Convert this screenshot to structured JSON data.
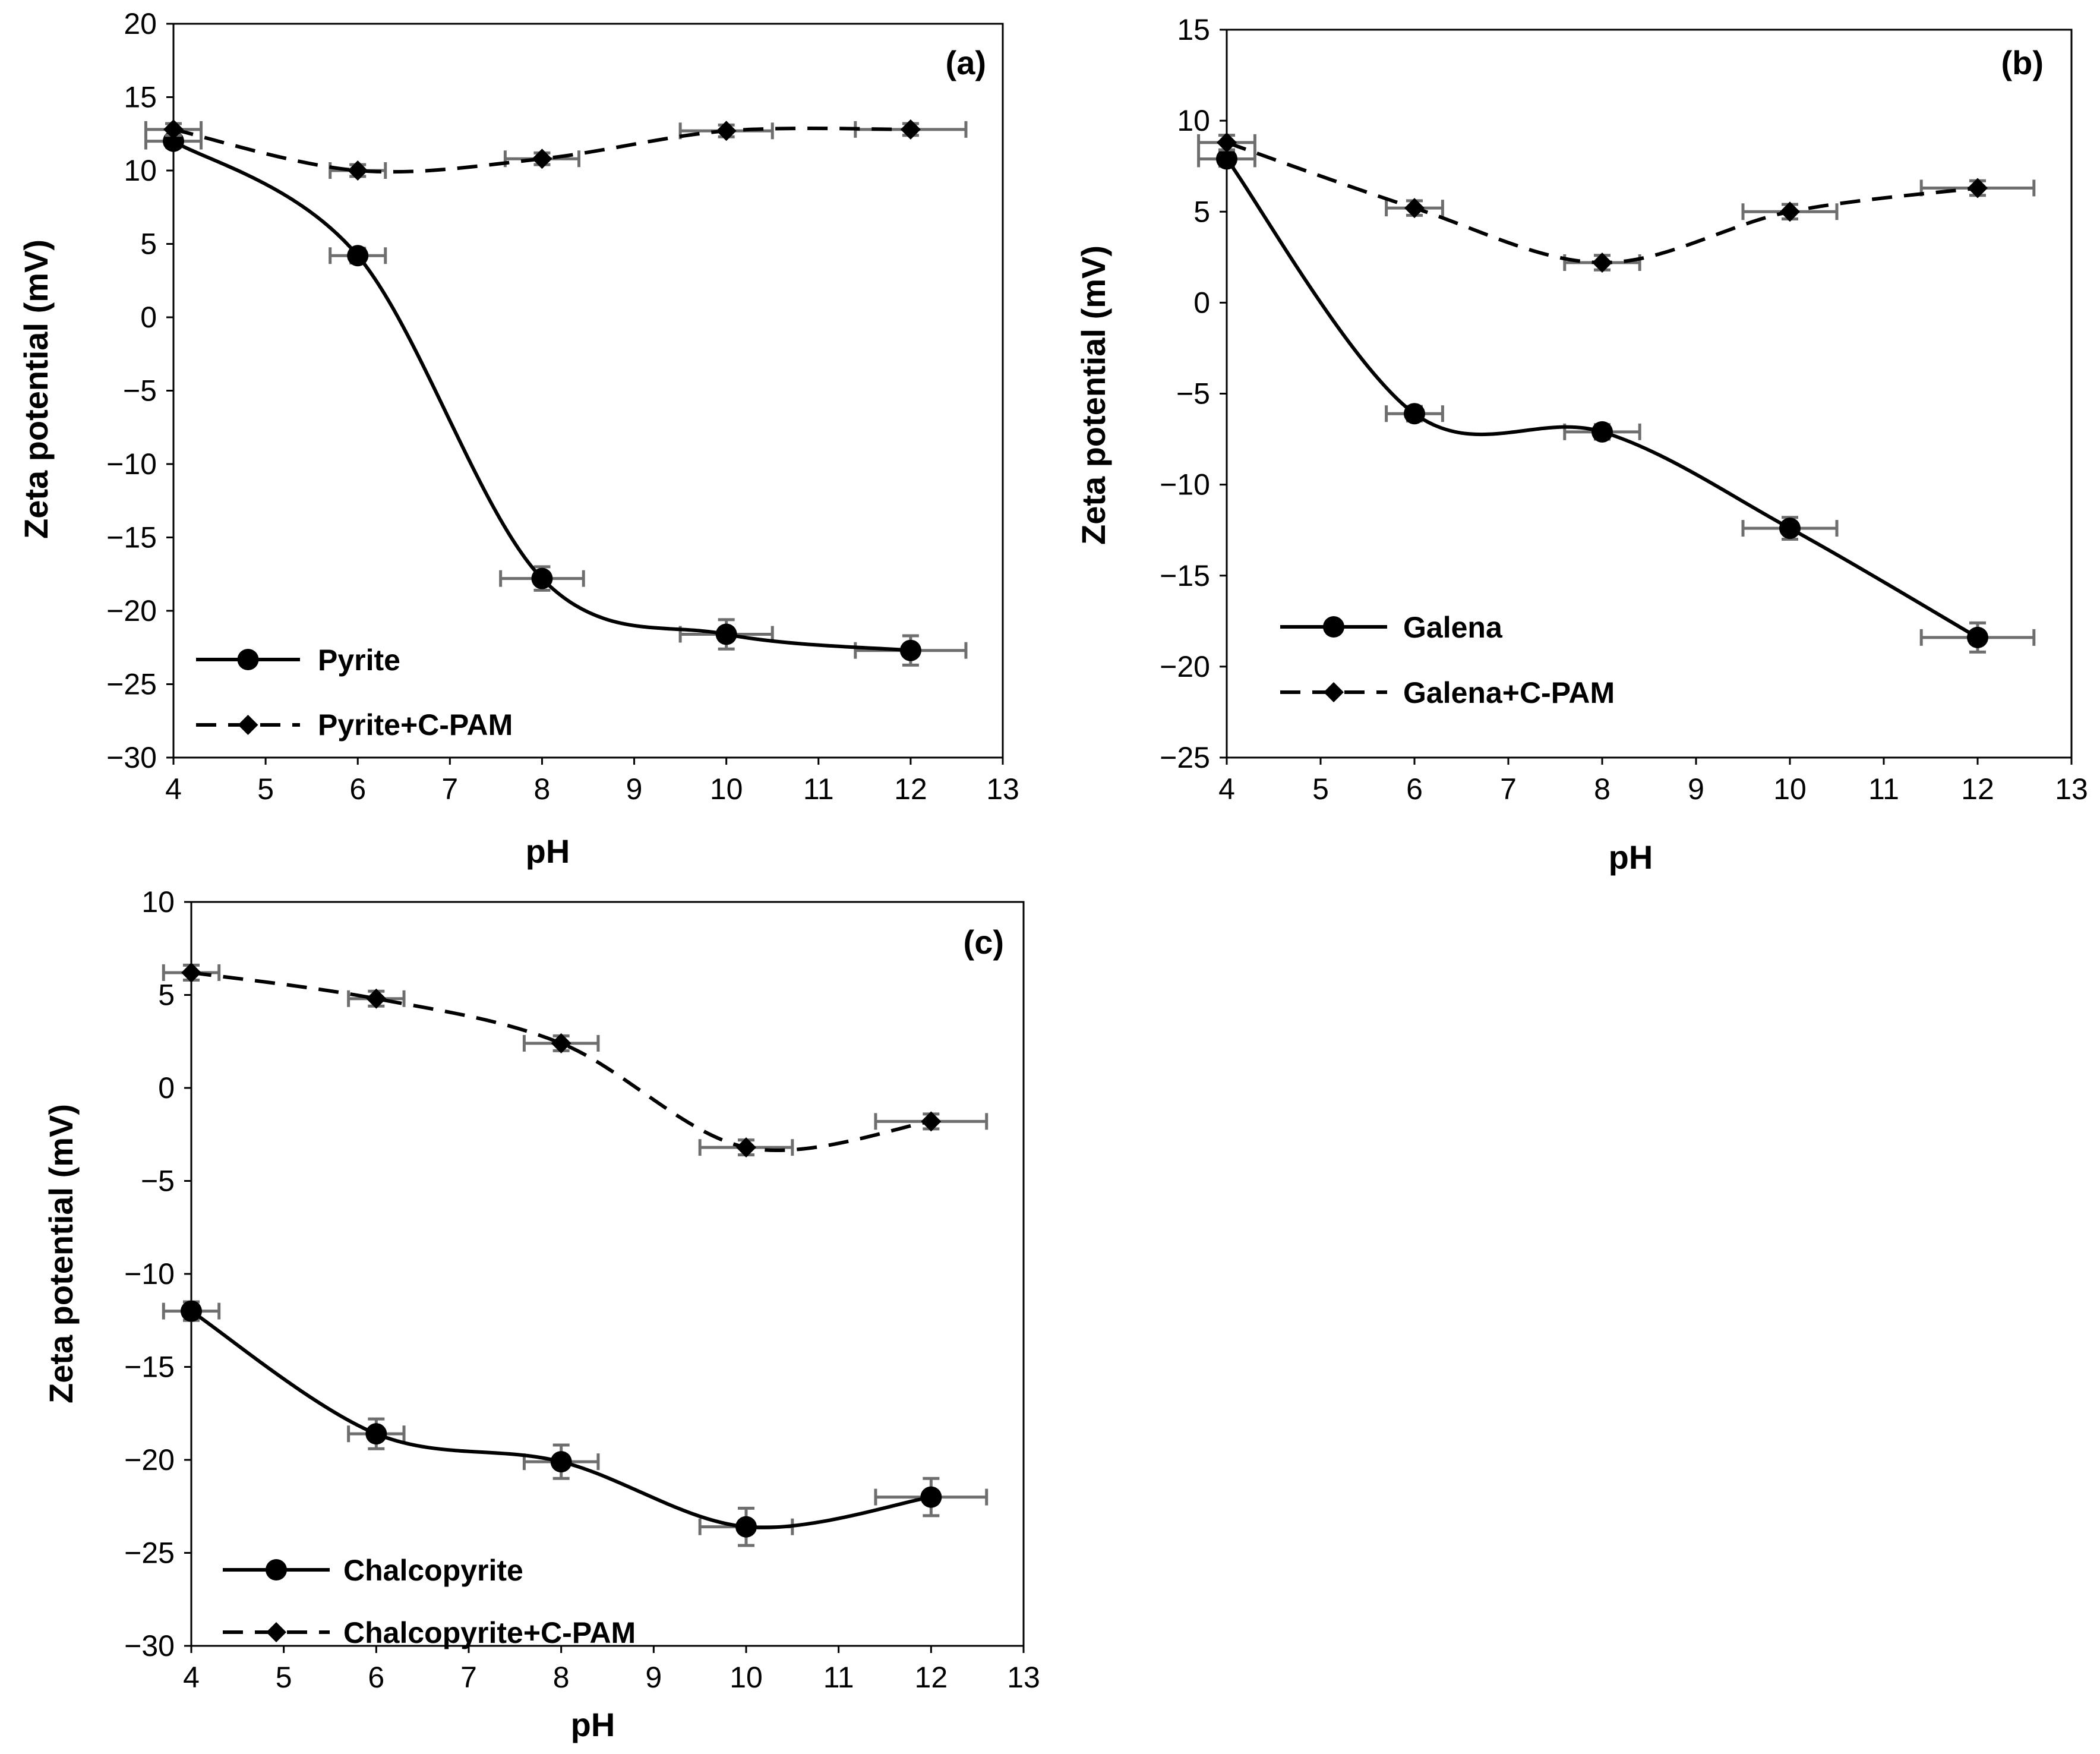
{
  "chart_data": [
    {
      "type": "line",
      "panel_label": "(a)",
      "xlabel": "pH",
      "ylabel": "Zeta potential (mV)",
      "xlim": [
        4,
        13
      ],
      "ylim": [
        -30,
        20
      ],
      "xticks": [
        4,
        5,
        6,
        7,
        8,
        9,
        10,
        11,
        12,
        13
      ],
      "yticks": [
        20,
        15,
        10,
        5,
        0,
        -5,
        -10,
        -15,
        -20,
        -25,
        -30
      ],
      "ytick_labels": [
        "20",
        "15",
        "10",
        "5",
        "0",
        "−5",
        "−10",
        "−15",
        "−20",
        "−25",
        "−30"
      ],
      "legend_position": "bottom-left",
      "series": [
        {
          "name": "Pyrite",
          "style": "solid",
          "marker": "circle",
          "x": [
            4,
            6,
            8,
            10,
            12
          ],
          "y": [
            12,
            4.2,
            -17.8,
            -21.6,
            -22.7
          ],
          "xerr": [
            0.3,
            0.3,
            0.45,
            0.5,
            0.6
          ],
          "yerr": [
            0.4,
            0.5,
            0.8,
            1.0,
            1.0
          ]
        },
        {
          "name": "Pyrite+C-PAM",
          "style": "dashed",
          "marker": "diamond",
          "x": [
            4,
            6,
            8,
            10,
            12
          ],
          "y": [
            12.8,
            10,
            10.8,
            12.7,
            12.8
          ],
          "xerr": [
            0.3,
            0.3,
            0.4,
            0.5,
            0.6
          ],
          "yerr": [
            0.4,
            0.4,
            0.4,
            0.4,
            0.4
          ]
        }
      ]
    },
    {
      "type": "line",
      "panel_label": "(b)",
      "xlabel": "pH",
      "ylabel": "Zeta potential (mV)",
      "xlim": [
        4,
        13
      ],
      "ylim": [
        -25,
        15
      ],
      "xticks": [
        4,
        5,
        6,
        7,
        8,
        9,
        10,
        11,
        12,
        13
      ],
      "yticks": [
        15,
        10,
        5,
        0,
        -5,
        -10,
        -15,
        -20,
        -25
      ],
      "ytick_labels": [
        "15",
        "10",
        "5",
        "0",
        "−5",
        "−10",
        "−15",
        "−20",
        "−25"
      ],
      "legend_position": "bottom-left",
      "series": [
        {
          "name": "Galena",
          "style": "solid",
          "marker": "circle",
          "x": [
            4,
            6,
            8,
            10,
            12
          ],
          "y": [
            7.9,
            -6.1,
            -7.1,
            -12.4,
            -18.4
          ],
          "xerr": [
            0.3,
            0.3,
            0.4,
            0.5,
            0.6
          ],
          "yerr": [
            0.4,
            0.4,
            0.4,
            0.6,
            0.8
          ]
        },
        {
          "name": "Galena+C-PAM",
          "style": "dashed",
          "marker": "diamond",
          "x": [
            4,
            6,
            8,
            10,
            12
          ],
          "y": [
            8.8,
            5.2,
            2.2,
            5.0,
            6.3
          ],
          "xerr": [
            0.3,
            0.3,
            0.4,
            0.5,
            0.6
          ],
          "yerr": [
            0.4,
            0.4,
            0.4,
            0.4,
            0.4
          ]
        }
      ]
    },
    {
      "type": "line",
      "panel_label": "(c)",
      "xlabel": "pH",
      "ylabel": "Zeta potential (mV)",
      "xlim": [
        4,
        13
      ],
      "ylim": [
        -30,
        10
      ],
      "xticks": [
        4,
        5,
        6,
        7,
        8,
        9,
        10,
        11,
        12,
        13
      ],
      "yticks": [
        10,
        5,
        0,
        -5,
        -10,
        -15,
        -20,
        -25,
        -30
      ],
      "ytick_labels": [
        "10",
        "5",
        "0",
        "−5",
        "−10",
        "−15",
        "−20",
        "−25",
        "−30"
      ],
      "legend_position": "bottom-left",
      "series": [
        {
          "name": "Chalcopyrite",
          "style": "solid",
          "marker": "circle",
          "x": [
            4,
            6,
            8,
            10,
            12
          ],
          "y": [
            -12,
            -18.6,
            -20.1,
            -23.6,
            -22
          ],
          "xerr": [
            0.3,
            0.3,
            0.4,
            0.5,
            0.6
          ],
          "yerr": [
            0.5,
            0.8,
            0.9,
            1.0,
            1.0
          ]
        },
        {
          "name": "Chalcopyrite+C-PAM",
          "style": "dashed",
          "marker": "diamond",
          "x": [
            4,
            6,
            8,
            10,
            12
          ],
          "y": [
            6.2,
            4.8,
            2.4,
            -3.2,
            -1.8
          ],
          "xerr": [
            0.3,
            0.3,
            0.4,
            0.5,
            0.6
          ],
          "yerr": [
            0.4,
            0.4,
            0.4,
            0.4,
            0.4
          ]
        }
      ]
    }
  ]
}
